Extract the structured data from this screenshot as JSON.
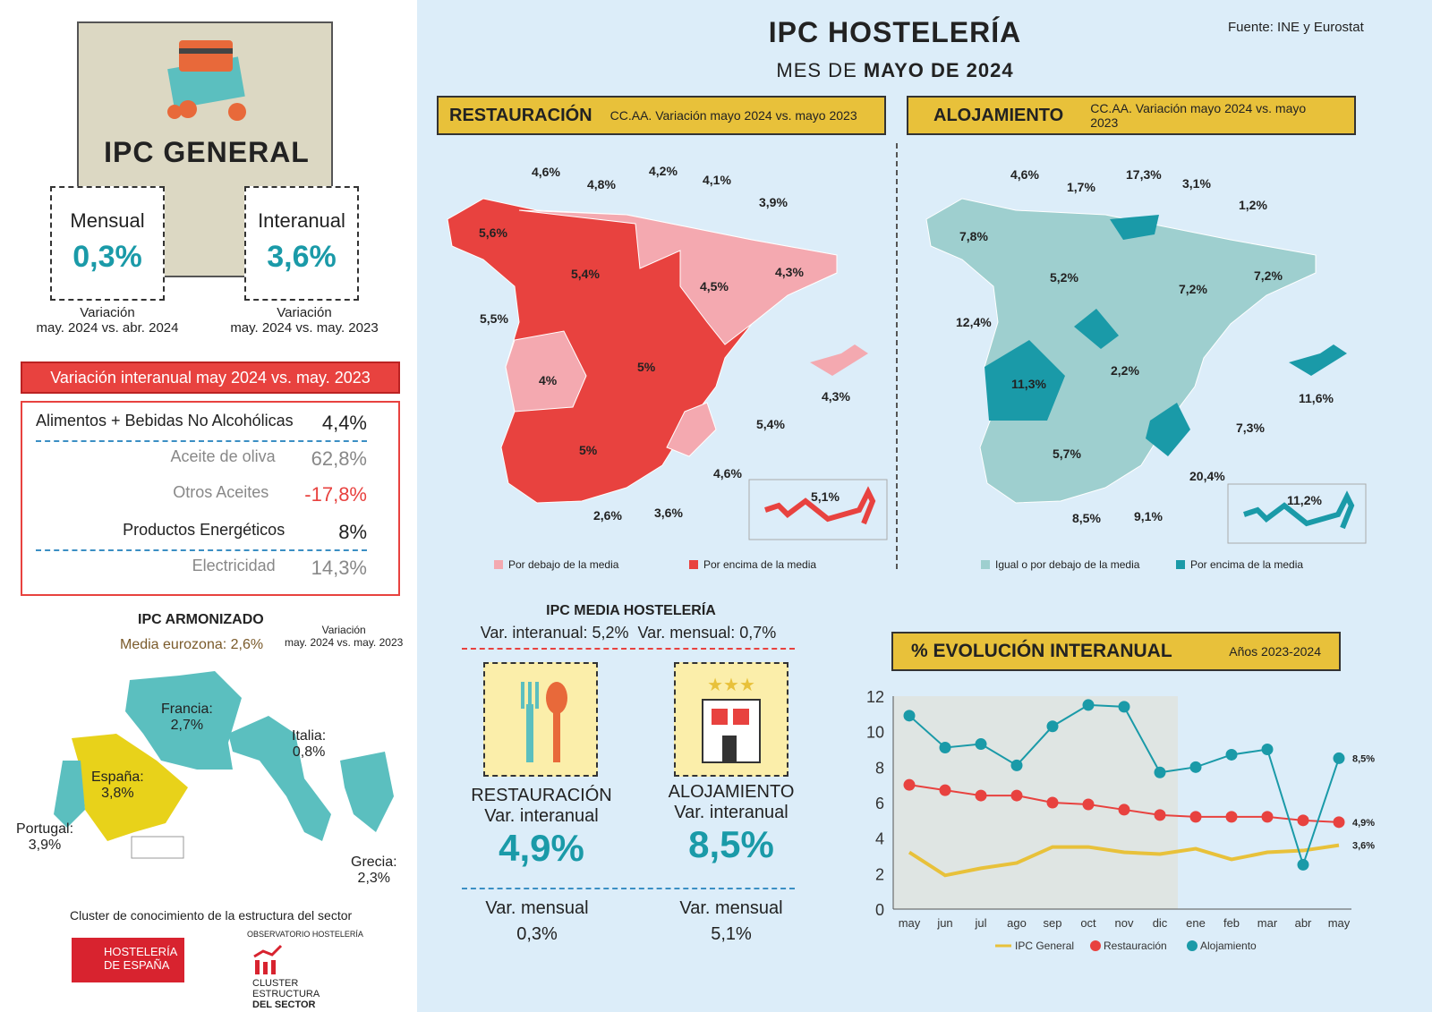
{
  "header": {
    "title": "IPC HOSTELERÍA",
    "subtitle_prefix": "MES DE",
    "subtitle_bold": "MAYO DE 2024",
    "source": "Fuente: INE y Eurostat"
  },
  "ipc_general": {
    "title": "IPC GENERAL",
    "mensual": {
      "label": "Mensual",
      "value": "0,3%",
      "caption1": "Variación",
      "caption2": "may. 2024 vs. abr. 2024"
    },
    "interanual": {
      "label": "Interanual",
      "value": "3,6%",
      "caption1": "Variación",
      "caption2": "may. 2024 vs. may. 2023"
    }
  },
  "variacion": {
    "header": "Variación interanual may 2024 vs. may. 2023",
    "rows": [
      {
        "label": "Alimentos + Bebidas No Alcohólicas",
        "value": "4,4%"
      },
      {
        "label": "Aceite de oliva",
        "value": "62,8%"
      },
      {
        "label": "Otros Aceites",
        "value": "-17,8%"
      },
      {
        "label": "Productos Energéticos",
        "value": "8%"
      },
      {
        "label": "Electricidad",
        "value": "14,3%"
      }
    ]
  },
  "armonizado": {
    "title": "IPC ARMONIZADO",
    "media": "Media eurozona: 2,6%",
    "var1": "Variación",
    "var2": "may. 2024 vs. may. 2023",
    "countries": [
      {
        "name": "Francia:",
        "value": "2,7%"
      },
      {
        "name": "Italia:",
        "value": "0,8%"
      },
      {
        "name": "España:",
        "value": "3,8%"
      },
      {
        "name": "Portugal:",
        "value": "3,9%"
      },
      {
        "name": "Grecia:",
        "value": "2,3%"
      }
    ]
  },
  "footer": {
    "cluster": "Cluster de conocimiento de la estructura del sector",
    "logo1": "HOSTELERÍA DE ESPAÑA",
    "logo2_top": "OBSERVATORIO HOSTELERÍA",
    "logo2": [
      "CLUSTER",
      "ESTRUCTURA",
      "DEL SECTOR"
    ]
  },
  "restauracion": {
    "title": "RESTAURACIÓN",
    "subtitle": "CC.AA. Variación mayo 2024 vs. mayo 2023",
    "labels": [
      "4,6%",
      "4,8%",
      "4,2%",
      "4,1%",
      "3,9%",
      "5,6%",
      "5,4%",
      "4,5%",
      "4,3%",
      "5,5%",
      "5%",
      "4%",
      "4,3%",
      "5,4%",
      "5%",
      "4,6%",
      "2,6%",
      "3,6%",
      "5,1%"
    ],
    "legend_below": "Por debajo de la media",
    "legend_above": "Por encima de la media",
    "color_below": "#f4a9b0",
    "color_above": "#e8423f"
  },
  "alojamiento": {
    "title": "ALOJAMIENTO",
    "subtitle": "CC.AA. Variación mayo 2024 vs. mayo 2023",
    "labels": [
      "4,6%",
      "1,7%",
      "17,3%",
      "3,1%",
      "1,2%",
      "7,8%",
      "5,2%",
      "7,2%",
      "7,2%",
      "12,4%",
      "11,3%",
      "2,2%",
      "11,6%",
      "7,3%",
      "5,7%",
      "20,4%",
      "8,5%",
      "9,1%",
      "11,2%"
    ],
    "legend_below": "Igual o por debajo de la media",
    "legend_above": "Por encima de la media",
    "color_below": "#9ecfcf",
    "color_above": "#1a9aa8"
  },
  "media": {
    "title": "IPC MEDIA HOSTELERÍA",
    "line": "Var. interanual: 5,2%  Var. mensual: 0,7%",
    "rest": {
      "label": "RESTAURACIÓN",
      "sub": "Var. interanual",
      "value": "4,9%",
      "mens_label": "Var. mensual",
      "mens": "0,3%"
    },
    "aloj": {
      "label": "ALOJAMIENTO",
      "sub": "Var. interanual",
      "value": "8,5%",
      "mens_label": "Var. mensual",
      "mens": "5,1%"
    }
  },
  "chart_data": {
    "type": "line",
    "title": "% EVOLUCIÓN INTERANUAL",
    "subtitle": "Años 2023-2024",
    "categories": [
      "may",
      "jun",
      "jul",
      "ago",
      "sep",
      "oct",
      "nov",
      "dic",
      "ene",
      "feb",
      "mar",
      "abr",
      "may"
    ],
    "ylim": [
      0,
      12
    ],
    "yticks": [
      0,
      2,
      4,
      6,
      8,
      10,
      12
    ],
    "grid": false,
    "series": [
      {
        "name": "IPC General",
        "color": "#e8c13a",
        "values": [
          3.2,
          1.9,
          2.3,
          2.6,
          3.5,
          3.5,
          3.2,
          3.1,
          3.4,
          2.8,
          3.2,
          3.3,
          3.6
        ],
        "end_label": "3,6%"
      },
      {
        "name": "Restauración",
        "color": "#e8423f",
        "values": [
          7.0,
          6.7,
          6.4,
          6.4,
          6.0,
          5.9,
          5.6,
          5.3,
          5.2,
          5.2,
          5.2,
          5.0,
          4.9
        ],
        "end_label": "4,9%"
      },
      {
        "name": "Alojamiento",
        "color": "#1a9aa8",
        "values": [
          10.9,
          9.1,
          9.3,
          8.1,
          10.3,
          11.5,
          11.4,
          7.7,
          8.0,
          8.7,
          9.0,
          2.5,
          8.5
        ],
        "end_label": "8,5%"
      }
    ],
    "legend": "bottom"
  }
}
